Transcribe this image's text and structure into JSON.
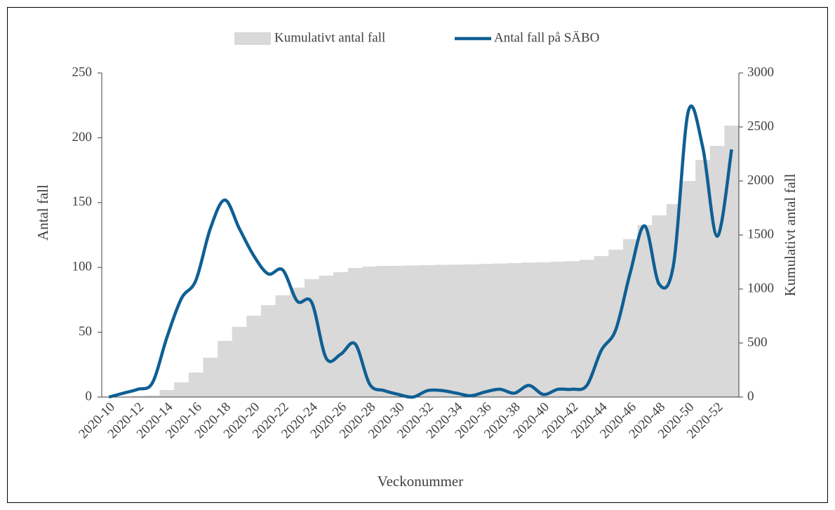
{
  "chart_data": {
    "type": "bar_line",
    "categories": [
      "2020-10",
      null,
      "2020-12",
      null,
      "2020-14",
      null,
      "2020-16",
      null,
      "2020-18",
      null,
      "2020-20",
      null,
      "2020-22",
      null,
      "2020-24",
      null,
      "2020-26",
      null,
      "2020-28",
      null,
      "2020-30",
      null,
      "2020-32",
      null,
      "2020-34",
      null,
      "2020-36",
      null,
      "2020-38",
      null,
      "2020-40",
      null,
      "2020-42",
      null,
      "2020-44",
      null,
      "2020-46",
      null,
      "2020-48",
      null,
      "2020-50",
      null,
      "2020-52",
      null
    ],
    "series": [
      {
        "name": "Kumulativt antal fall",
        "color": "#d9d9d9",
        "axis": "y2",
        "kind": "bar",
        "values": [
          0,
          2,
          10,
          15,
          65,
          136,
          227,
          364,
          520,
          650,
          753,
          851,
          942,
          1013,
          1091,
          1124,
          1156,
          1195,
          1208,
          1214,
          1215,
          1218,
          1221,
          1224,
          1226,
          1228,
          1232,
          1236,
          1240,
          1245,
          1248,
          1253,
          1258,
          1270,
          1305,
          1364,
          1461,
          1591,
          1682,
          1786,
          2000,
          2195,
          2325,
          2513
        ]
      },
      {
        "name": "Antal fall på SÄBO",
        "color": "#0f5f94",
        "axis": "y",
        "kind": "line",
        "values": [
          0,
          3,
          6,
          11,
          46,
          76,
          90,
          130,
          152,
          130,
          109,
          95,
          98,
          74,
          73,
          30,
          33,
          41,
          10,
          5,
          2,
          0,
          5,
          5,
          3,
          1,
          4,
          6,
          3,
          9,
          2,
          6,
          6,
          9,
          36,
          52,
          96,
          132,
          87,
          103,
          220,
          193,
          124,
          191
        ]
      }
    ],
    "y_label": "Antal fall",
    "y2_label": "Kumulativt antal fall",
    "x_label": "Veckonummer",
    "ylim": [
      0,
      250
    ],
    "yticks": [
      0,
      50,
      100,
      150,
      200,
      250
    ],
    "y2lim": [
      0,
      3000
    ],
    "y2ticks": [
      0,
      500,
      1000,
      1500,
      2000,
      2500,
      3000
    ],
    "legend": "top"
  }
}
